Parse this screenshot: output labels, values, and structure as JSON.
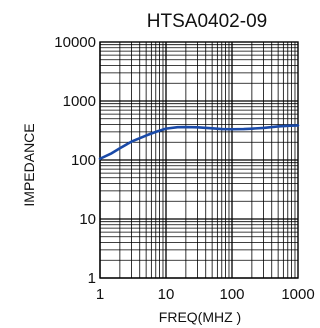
{
  "chart_data": {
    "type": "line",
    "title": "HTSA0402-09",
    "xlabel": "FREQ(MHZ )",
    "ylabel": "IMPEDANCE",
    "xscale": "log",
    "yscale": "log",
    "xlim": [
      1,
      1000
    ],
    "ylim": [
      1,
      10000
    ],
    "x_tick_labels": [
      "1",
      "10",
      "100",
      "1000"
    ],
    "y_tick_labels": [
      "1",
      "10",
      "100",
      "1000",
      "10000"
    ],
    "grid": true,
    "line_color": "#1a4aa8",
    "series": [
      {
        "x": [
          1,
          1.5,
          2,
          3,
          5,
          7,
          10,
          15,
          20,
          30,
          50,
          70,
          100,
          150,
          200,
          300,
          500,
          700,
          1000
        ],
        "y": [
          105,
          130,
          158,
          205,
          260,
          300,
          340,
          360,
          362,
          358,
          345,
          335,
          332,
          335,
          340,
          350,
          370,
          380,
          385
        ]
      }
    ]
  }
}
